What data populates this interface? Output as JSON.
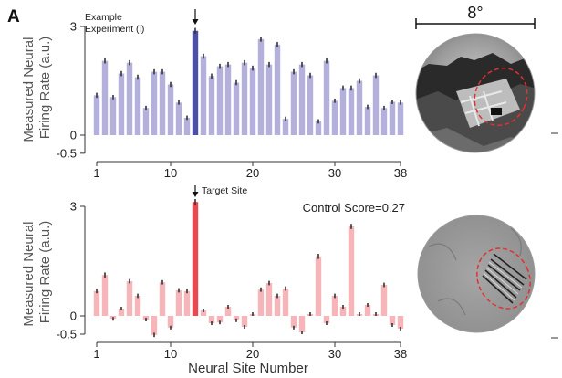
{
  "panel_label": "A",
  "scale_label": "8°",
  "colors": {
    "top_bar": "#b3b0dc",
    "top_highlight": "#4b4fa6",
    "bottom_bar": "#f6b6b9",
    "bottom_highlight": "#e8484f",
    "error": "#333333",
    "axis": "#333333"
  },
  "chart_data": [
    {
      "type": "bar",
      "ylabel": [
        "Measured Neural",
        "Firing Rate (a.u.)"
      ],
      "xlabel": "",
      "yticks": [
        -0.5,
        0,
        3
      ],
      "ytick_labels": [
        "-0.5",
        "0",
        "3"
      ],
      "ylim": [
        -0.5,
        3
      ],
      "xticks": [
        1,
        10,
        20,
        30,
        38
      ],
      "highlight_index": 13,
      "annotation": [
        "Example",
        "Experiment (i)"
      ],
      "x": [
        1,
        2,
        3,
        4,
        5,
        6,
        7,
        8,
        9,
        10,
        11,
        12,
        13,
        14,
        15,
        16,
        17,
        18,
        19,
        20,
        21,
        22,
        23,
        24,
        25,
        26,
        27,
        28,
        29,
        30,
        31,
        32,
        33,
        34,
        35,
        36,
        37,
        38
      ],
      "values": [
        1.1,
        2.05,
        1.05,
        1.7,
        2.0,
        1.6,
        0.75,
        1.75,
        1.75,
        1.4,
        0.9,
        0.48,
        2.88,
        2.18,
        1.63,
        1.9,
        1.95,
        1.45,
        2.0,
        1.85,
        2.65,
        1.95,
        2.5,
        0.45,
        1.75,
        1.95,
        1.65,
        0.38,
        2.05,
        0.95,
        1.3,
        1.3,
        1.5,
        0.78,
        1.65,
        0.75,
        0.92,
        0.9
      ],
      "errors": [
        0.07,
        0.07,
        0.06,
        0.07,
        0.07,
        0.07,
        0.06,
        0.07,
        0.07,
        0.07,
        0.06,
        0.06,
        0.08,
        0.07,
        0.07,
        0.07,
        0.07,
        0.07,
        0.07,
        0.07,
        0.07,
        0.07,
        0.07,
        0.06,
        0.07,
        0.07,
        0.07,
        0.06,
        0.07,
        0.06,
        0.07,
        0.07,
        0.07,
        0.06,
        0.07,
        0.06,
        0.06,
        0.06
      ]
    },
    {
      "type": "bar",
      "ylabel": [
        "Measured Neural",
        "Firing Rate (a.u.)"
      ],
      "xlabel": "Neural Site Number",
      "yticks": [
        -0.5,
        0,
        3
      ],
      "ytick_labels": [
        "-0.5",
        "0",
        "3"
      ],
      "ylim": [
        -0.5,
        3
      ],
      "xticks": [
        1,
        10,
        20,
        30,
        38
      ],
      "highlight_index": 13,
      "annotation": [
        "Target Site"
      ],
      "control_score": "Control Score=0.27",
      "x": [
        1,
        2,
        3,
        4,
        5,
        6,
        7,
        8,
        9,
        10,
        11,
        12,
        13,
        14,
        15,
        16,
        17,
        18,
        19,
        20,
        21,
        22,
        23,
        24,
        25,
        26,
        27,
        28,
        29,
        30,
        31,
        32,
        33,
        34,
        35,
        36,
        37,
        38
      ],
      "values": [
        0.68,
        1.12,
        -0.08,
        0.2,
        0.95,
        0.55,
        -0.1,
        -0.52,
        0.92,
        -0.32,
        0.7,
        0.68,
        3.12,
        0.15,
        -0.2,
        -0.18,
        0.25,
        -0.12,
        -0.3,
        0.05,
        0.72,
        0.9,
        0.55,
        0.75,
        -0.32,
        -0.45,
        0.05,
        1.63,
        -0.2,
        0.55,
        0.25,
        2.45,
        0.05,
        0.3,
        0.05,
        0.85,
        -0.25,
        -0.35
      ],
      "errors": [
        0.06,
        0.07,
        0.05,
        0.05,
        0.06,
        0.06,
        0.05,
        0.06,
        0.06,
        0.05,
        0.06,
        0.06,
        0.08,
        0.05,
        0.05,
        0.05,
        0.05,
        0.05,
        0.05,
        0.05,
        0.06,
        0.06,
        0.06,
        0.06,
        0.05,
        0.05,
        0.05,
        0.07,
        0.05,
        0.06,
        0.05,
        0.07,
        0.05,
        0.05,
        0.05,
        0.06,
        0.05,
        0.05
      ]
    }
  ]
}
